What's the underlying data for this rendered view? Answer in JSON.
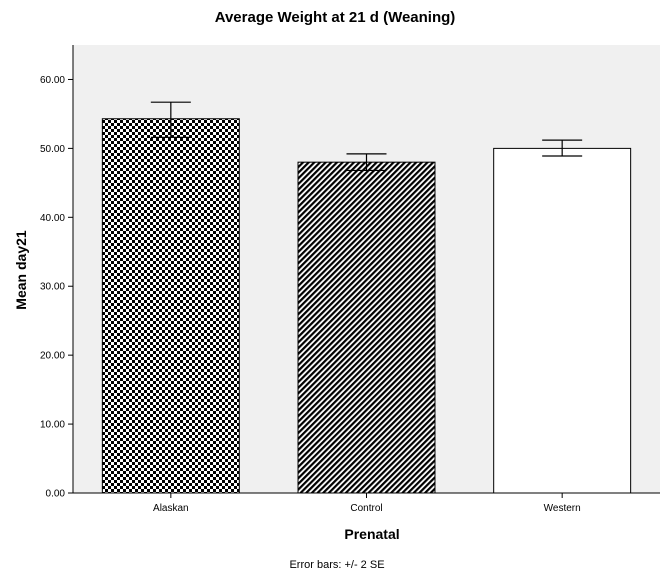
{
  "chart_data": {
    "type": "bar",
    "title": "Average Weight at 21 d (Weaning)",
    "xlabel": "Prenatal",
    "ylabel": "Mean day21",
    "categories": [
      "Alaskan",
      "Control",
      "Western"
    ],
    "values": [
      54.3,
      48.0,
      50.0
    ],
    "error_bars": {
      "low": [
        51.6,
        46.8,
        48.9
      ],
      "high": [
        56.7,
        49.2,
        51.2
      ]
    },
    "ylim": [
      0,
      65
    ],
    "yticks": [
      "0.00",
      "10.00",
      "20.00",
      "30.00",
      "40.00",
      "50.00",
      "60.00"
    ],
    "bar_fills": [
      "checkerboard",
      "diagonal-hatch",
      "solid-white"
    ],
    "plot_background": "#f0f0f0",
    "caption": "Error bars: +/- 2 SE",
    "grid": false,
    "legend": "none"
  }
}
